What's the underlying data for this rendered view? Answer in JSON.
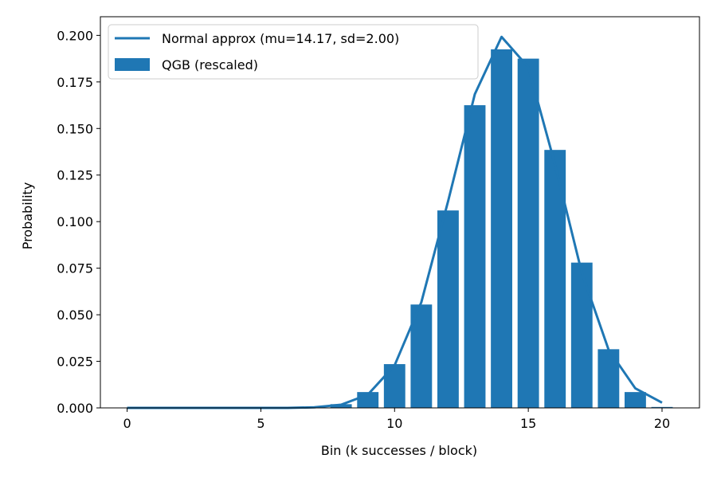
{
  "chart_data": {
    "type": "bar",
    "title": "",
    "xlabel": "Bin (k successes / block)",
    "ylabel": "Probability",
    "xlim": [
      -1.0,
      21.4
    ],
    "ylim": [
      0.0,
      0.21
    ],
    "xticks": [
      0,
      5,
      10,
      15,
      20
    ],
    "xtick_labels": [
      "0",
      "5",
      "10",
      "15",
      "20"
    ],
    "yticks": [
      0.0,
      0.025,
      0.05,
      0.075,
      0.1,
      0.125,
      0.15,
      0.175,
      0.2
    ],
    "ytick_labels": [
      "0.000",
      "0.025",
      "0.050",
      "0.075",
      "0.100",
      "0.125",
      "0.150",
      "0.175",
      "0.200"
    ],
    "grid": false,
    "legend_position": "top-left",
    "colors": {
      "series": "#1f77b4",
      "axis": "#000000"
    },
    "series": [
      {
        "name": "QGB (rescaled)",
        "kind": "bar",
        "x": [
          0,
          1,
          2,
          3,
          4,
          5,
          6,
          7,
          8,
          9,
          10,
          11,
          12,
          13,
          14,
          15,
          16,
          17,
          18,
          19,
          20
        ],
        "values": [
          0.0,
          0.0,
          0.0,
          0.0,
          0.0,
          0.0,
          0.0,
          0.0002,
          0.002,
          0.0085,
          0.0235,
          0.0555,
          0.106,
          0.1625,
          0.1925,
          0.1875,
          0.1385,
          0.078,
          0.0315,
          0.0085,
          0.0005
        ]
      },
      {
        "name": "Normal approx (mu=14.17, sd=2.00)",
        "kind": "line",
        "x": [
          0,
          1,
          2,
          3,
          4,
          5,
          6,
          7,
          8,
          9,
          10,
          11,
          12,
          13,
          14,
          15,
          16,
          17,
          18,
          19,
          20
        ],
        "values": [
          0.0,
          0.0,
          0.0,
          0.0,
          0.0,
          0.0,
          0.0,
          0.0003,
          0.0017,
          0.0071,
          0.0228,
          0.0567,
          0.1109,
          0.1684,
          0.1992,
          0.1829,
          0.1306,
          0.0726,
          0.0313,
          0.0105,
          0.0028
        ]
      }
    ]
  }
}
